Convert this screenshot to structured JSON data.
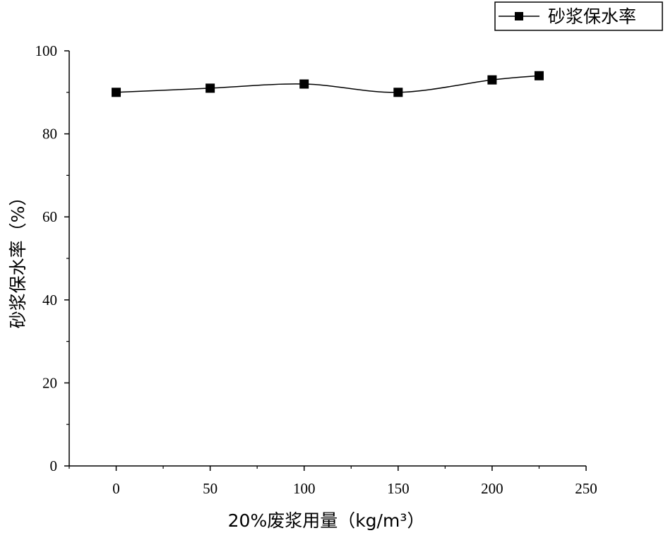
{
  "chart_data": {
    "type": "line",
    "title": "",
    "xlabel": "20%废浆用量（kg/m³）",
    "ylabel": "砂浆保水率（%）",
    "xlim": [
      -25,
      250
    ],
    "ylim": [
      0,
      100
    ],
    "x_ticks": [
      0,
      50,
      100,
      150,
      200,
      250
    ],
    "y_ticks": [
      0,
      20,
      40,
      60,
      80,
      100
    ],
    "x_tick_labels": [
      "0",
      "50",
      "100",
      "150",
      "200",
      "250"
    ],
    "y_tick_labels": [
      "0",
      "20",
      "40",
      "60",
      "80",
      "100"
    ],
    "grid": false,
    "legend_position": "top-right",
    "series": [
      {
        "name": "砂浆保水率",
        "marker": "square",
        "color": "#000000",
        "x": [
          0,
          50,
          100,
          150,
          200,
          225
        ],
        "y": [
          90,
          91,
          92,
          90,
          93,
          94
        ]
      }
    ]
  }
}
